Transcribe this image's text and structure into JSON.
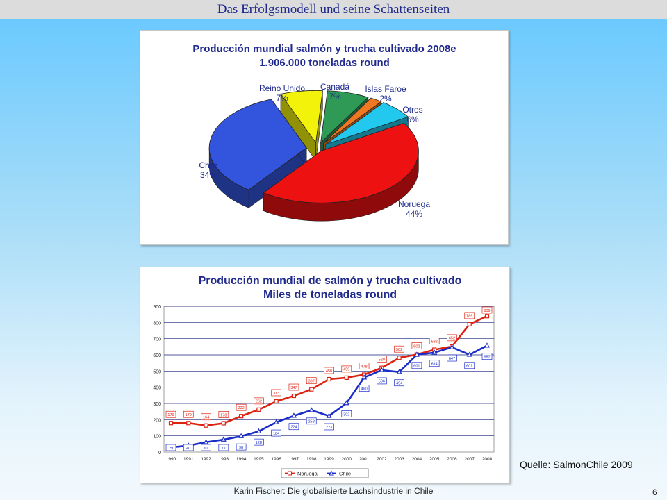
{
  "slide": {
    "title": "Das Erfolgsmodell und seine Schattenseiten",
    "source": "Quelle: SalmonChile 2009",
    "footer": "Karin Fischer: Die globalisierte Lachsindustrie in Chile",
    "page_number": "6"
  },
  "chart_data": [
    {
      "type": "pie",
      "title": "Producción mundial salmón y trucha cultivado 2008e",
      "subtitle": "1.906.000 toneladas round",
      "slices": [
        {
          "name": "Noruega",
          "value": 44,
          "label": "44%",
          "color": "#ee1111"
        },
        {
          "name": "Chile",
          "value": 34,
          "label": "34%",
          "color": "#3355dd"
        },
        {
          "name": "Reino Unido",
          "value": 7,
          "label": "7%",
          "color": "#f2f20a"
        },
        {
          "name": "Canadá",
          "value": 7,
          "label": "7%",
          "color": "#2e9a55"
        },
        {
          "name": "Islas Faroe",
          "value": 2,
          "label": "2%",
          "color": "#f07820"
        },
        {
          "name": "Otros",
          "value": 6,
          "label": "6%",
          "color": "#22c8ee"
        }
      ]
    },
    {
      "type": "line",
      "title": "Producción mundial de salmón y trucha cultivado",
      "subtitle": "Miles de toneladas round",
      "x": [
        "1990",
        "1991",
        "1992",
        "1993",
        "1994",
        "1995",
        "1996",
        "1997",
        "1998",
        "1999",
        "2000",
        "2001",
        "2002",
        "2003",
        "2004",
        "2005",
        "2006",
        "2007",
        "2008"
      ],
      "ylim": [
        0,
        900
      ],
      "yticks": [
        0,
        100,
        200,
        300,
        400,
        500,
        600,
        700,
        800,
        900
      ],
      "grid": true,
      "legend": "bottom",
      "series": [
        {
          "name": "Noruega",
          "color": "#dd2211",
          "marker": "square",
          "values": [
            179,
            179,
            164,
            178,
            222,
            262,
            313,
            347,
            387,
            450,
            459,
            478,
            520,
            582,
            602,
            632,
            652,
            789,
            839
          ]
        },
        {
          "name": "Chile",
          "color": "#1a2cc8",
          "marker": "triangle",
          "values": [
            29,
            40,
            61,
            77,
            98,
            128,
            184,
            224,
            258,
            223,
            302,
            460,
            506,
            494,
            601,
            614,
            647,
            601,
            657
          ]
        }
      ]
    }
  ]
}
